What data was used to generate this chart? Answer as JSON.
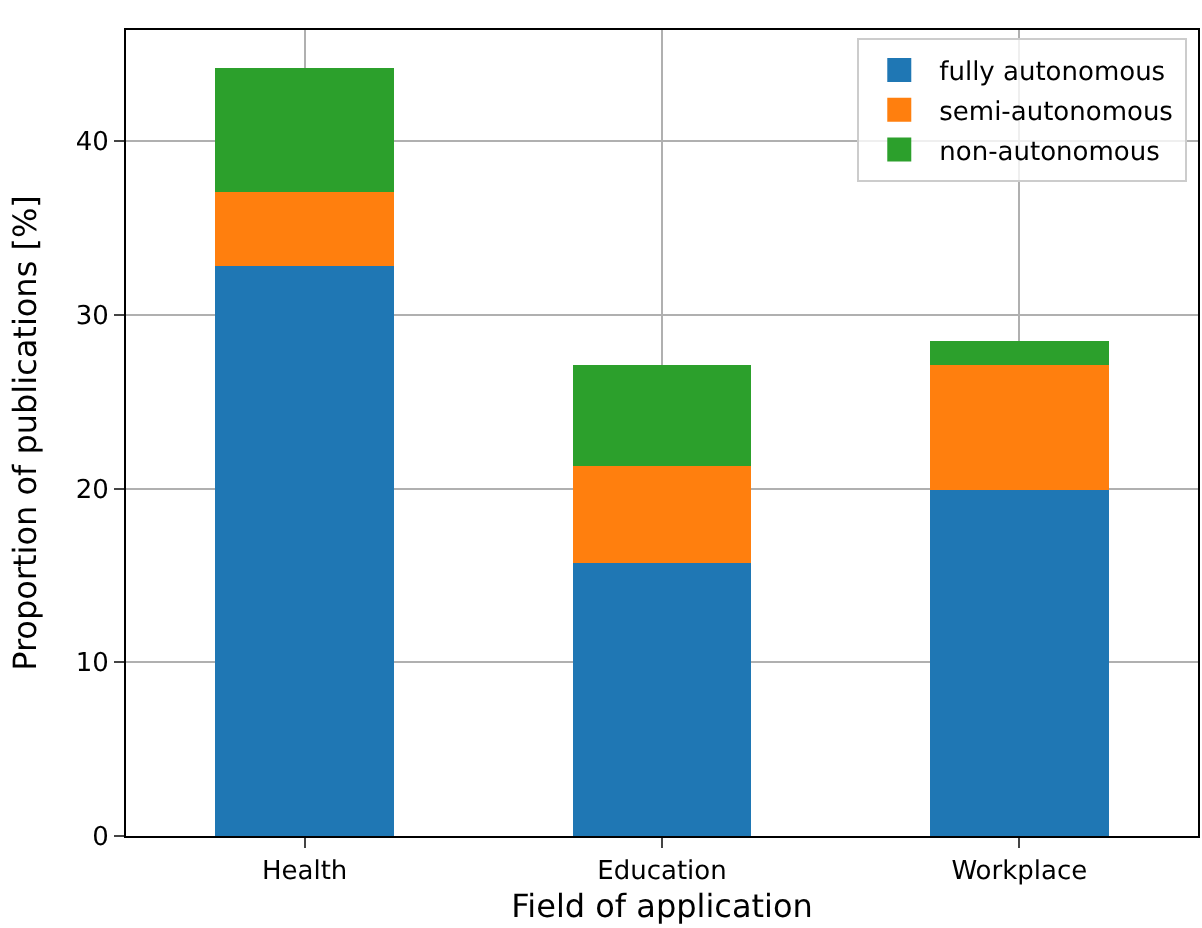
{
  "chart_data": {
    "type": "bar",
    "stacked": true,
    "xlabel": "Field of application",
    "ylabel": "Proportion of publications [%]",
    "categories": [
      "Health",
      "Education",
      "Workplace"
    ],
    "series": [
      {
        "name": "fully autonomous",
        "color": "#1f77b4",
        "values": [
          32.8,
          15.7,
          19.9
        ]
      },
      {
        "name": "semi-autonomous",
        "color": "#ff7f0e",
        "values": [
          4.3,
          5.6,
          7.2
        ]
      },
      {
        "name": "non-autonomous",
        "color": "#2ca02c",
        "values": [
          7.1,
          5.8,
          1.4
        ]
      }
    ],
    "ylim": [
      0,
      46.4
    ],
    "yticks": [
      0,
      10,
      20,
      30,
      40
    ],
    "grid": true,
    "legend": "top right"
  }
}
